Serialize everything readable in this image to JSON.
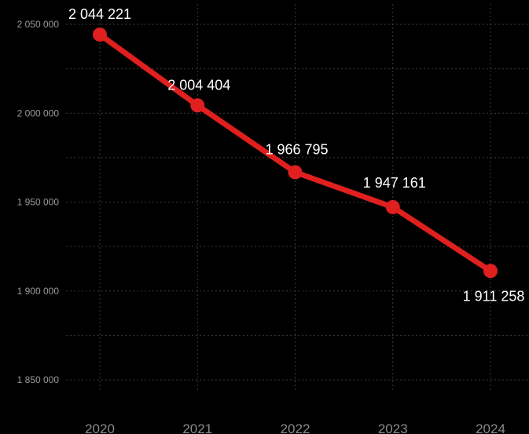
{
  "chart_data": {
    "type": "line",
    "title": "",
    "xlabel": "",
    "ylabel": "",
    "x": [
      "2020",
      "2021",
      "2022",
      "2023",
      "2024"
    ],
    "series": [
      {
        "values": [
          2044221,
          2004404,
          1966795,
          1947161,
          1911258
        ],
        "labels": [
          "2 044 221",
          "2 004 404",
          "1 966 795",
          "1 947 161",
          "1 911 258"
        ]
      }
    ],
    "yticks": [
      {
        "value": 2050000,
        "label": "2 050 000"
      },
      {
        "value": 2000000,
        "label": "2 000 000"
      },
      {
        "value": 1950000,
        "label": "1 950 000"
      },
      {
        "value": 1900000,
        "label": "1 900 000"
      },
      {
        "value": 1850000,
        "label": "1 850 000"
      }
    ],
    "ylim": [
      1850000,
      2050000
    ],
    "grid": true,
    "legend": "none",
    "colors": {
      "background": "#000000",
      "line": "#e01f1f",
      "grid": "#3a3a3a",
      "text": "#ffffff",
      "tick": "#9a9a9a"
    }
  }
}
